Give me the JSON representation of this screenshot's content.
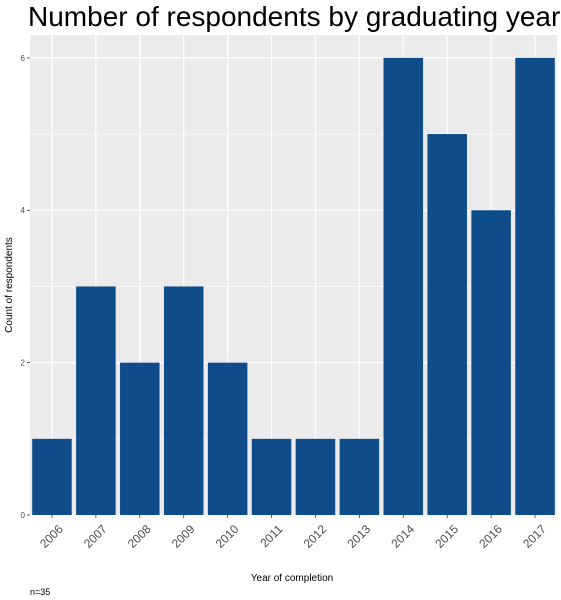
{
  "chart_data": {
    "type": "bar",
    "title": "Number of respondents by graduating year",
    "xlabel": "Year of completion",
    "ylabel": "Count of respondents",
    "caption": "n=35",
    "categories": [
      "2006",
      "2007",
      "2008",
      "2009",
      "2010",
      "2011",
      "2012",
      "2013",
      "2014",
      "2015",
      "2016",
      "2017"
    ],
    "values": [
      1,
      3,
      2,
      3,
      2,
      1,
      1,
      1,
      6,
      5,
      4,
      6
    ],
    "ylim": [
      0,
      6.3
    ],
    "yticks": [
      0,
      2,
      4,
      6
    ],
    "grid": true,
    "bar_color": "#0f4d8a",
    "panel_bg": "#ebebeb",
    "grid_color": "#ffffff"
  }
}
